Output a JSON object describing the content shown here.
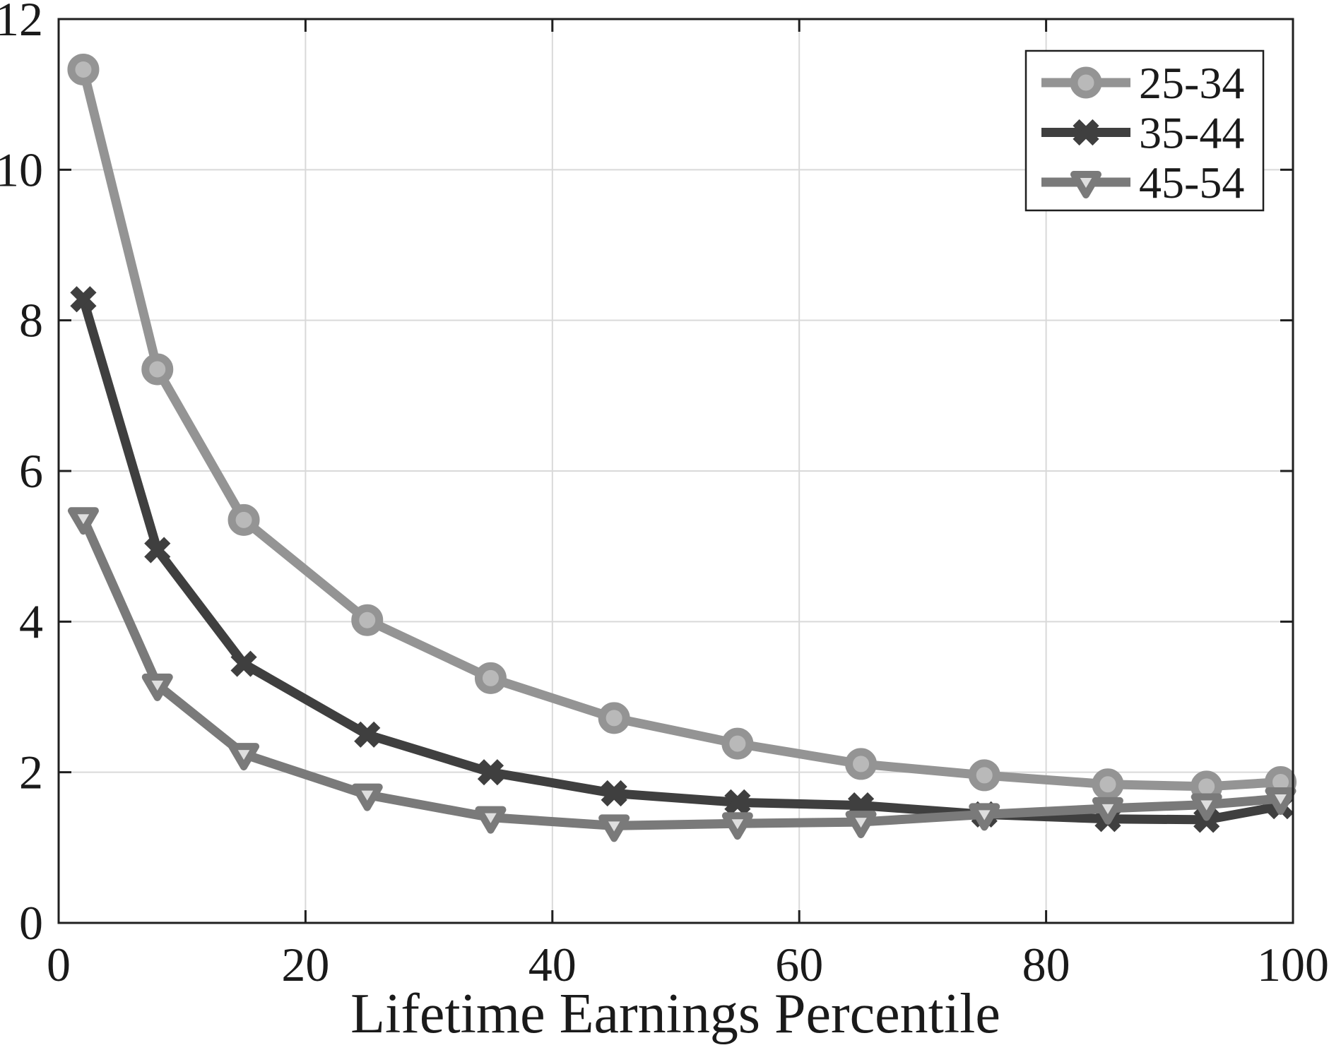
{
  "chart_data": {
    "type": "line",
    "title": "",
    "xlabel": "Lifetime Earnings Percentile",
    "ylabel": "",
    "xlim": [
      0,
      100
    ],
    "ylim": [
      0,
      12
    ],
    "xticks": [
      0,
      20,
      40,
      60,
      80,
      100
    ],
    "yticks": [
      0,
      2,
      4,
      6,
      8,
      10,
      12
    ],
    "grid": true,
    "legend_position": "top-right",
    "x": [
      2,
      8,
      15,
      25,
      35,
      45,
      55,
      65,
      75,
      85,
      93,
      99
    ],
    "series": [
      {
        "name": "25-34",
        "marker": "circle",
        "line_color": "#949494",
        "marker_fill": "#b9b9b9",
        "values": [
          11.33,
          7.35,
          5.35,
          4.02,
          3.25,
          2.72,
          2.38,
          2.11,
          1.96,
          1.84,
          1.81,
          1.87
        ]
      },
      {
        "name": "35-44",
        "marker": "x",
        "line_color": "#3f3f3f",
        "marker_fill": "#3f3f3f",
        "values": [
          8.28,
          4.95,
          3.44,
          2.5,
          2.0,
          1.72,
          1.6,
          1.56,
          1.44,
          1.38,
          1.37,
          1.55
        ]
      },
      {
        "name": "45-54",
        "marker": "triangle-down",
        "line_color": "#7a7a7a",
        "marker_fill": "#dedede",
        "values": [
          5.37,
          3.16,
          2.24,
          1.7,
          1.4,
          1.29,
          1.32,
          1.34,
          1.44,
          1.52,
          1.57,
          1.65
        ]
      }
    ],
    "colors": {
      "background": "#ffffff",
      "grid": "#d9d9d9",
      "axis": "#1f1f1f",
      "text": "#1a1a1a",
      "legend_border": "#1f1f1f"
    }
  }
}
